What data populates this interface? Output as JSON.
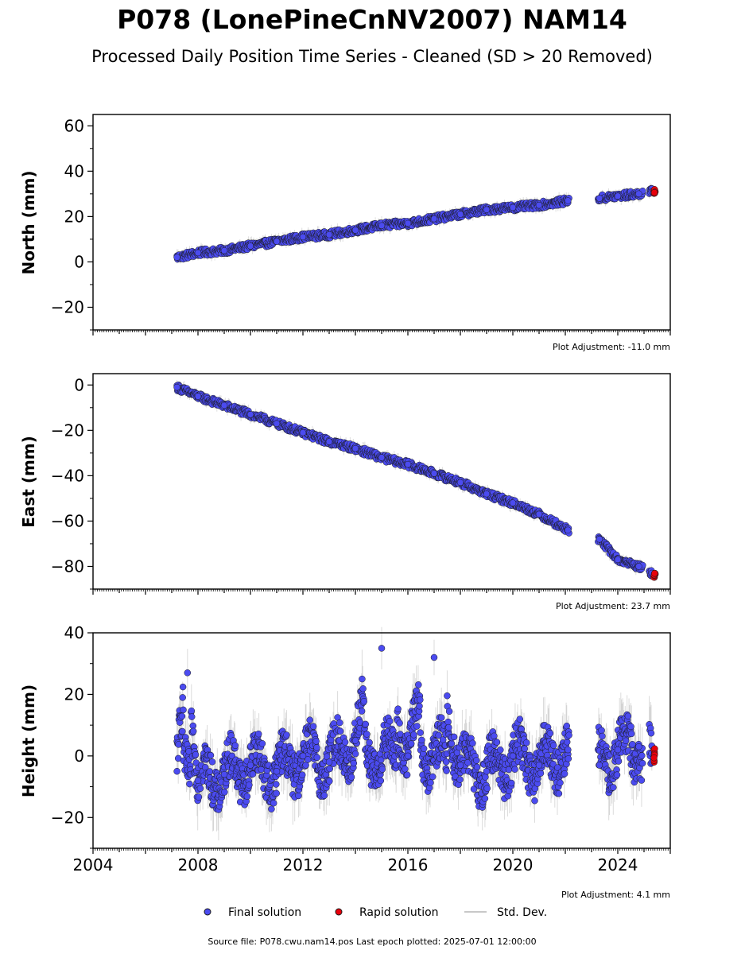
{
  "figure": {
    "title": "P078 (LonePineCnNV2007) NAM14",
    "subtitle": "Processed Daily Position Time Series - Cleaned (SD > 20 Removed)",
    "source_text": "Source file: P078.cwu.nam14.pos  Last epoch plotted: 2025-07-01 12:00:00",
    "legend": {
      "final": "Final solution",
      "rapid": "Rapid solution",
      "std": "Std. Dev."
    },
    "colors": {
      "final": "#4b4bf0",
      "rapid": "#e8000b",
      "std": "#c8c8c8",
      "marker_edge": "#1a1a1a"
    }
  },
  "chart_data": [
    {
      "type": "scatter",
      "panel": "north",
      "ylabel": "North (mm)",
      "ylim": [
        -30,
        65
      ],
      "yticks": [
        -20,
        0,
        20,
        40,
        60
      ],
      "xlim": [
        2004,
        2026
      ],
      "adjustment": "Plot Adjustment: -11.0 mm",
      "series": [
        {
          "name": "Final solution",
          "x": [
            2007.2,
            2008.0,
            2009.0,
            2010.0,
            2011.0,
            2012.0,
            2013.0,
            2014.0,
            2015.0,
            2016.0,
            2017.0,
            2018.0,
            2019.0,
            2020.0,
            2021.0,
            2022.1,
            2023.3,
            2024.0,
            2024.8,
            2025.3
          ],
          "y": [
            2,
            4,
            5,
            7,
            9,
            11,
            12,
            14,
            16,
            17,
            19,
            21,
            23,
            24,
            25,
            27,
            28,
            29,
            30,
            31
          ]
        },
        {
          "name": "Rapid solution",
          "x": [
            2025.4
          ],
          "y": [
            31
          ]
        }
      ]
    },
    {
      "type": "scatter",
      "panel": "east",
      "ylabel": "East (mm)",
      "ylim": [
        -90,
        5
      ],
      "yticks": [
        -80,
        -60,
        -40,
        -20,
        0
      ],
      "xlim": [
        2004,
        2026
      ],
      "adjustment": "Plot Adjustment: 23.7 mm",
      "series": [
        {
          "name": "Final solution",
          "x": [
            2007.2,
            2008.0,
            2009.0,
            2010.0,
            2011.0,
            2012.0,
            2013.0,
            2014.0,
            2015.0,
            2016.0,
            2017.0,
            2018.0,
            2019.0,
            2020.0,
            2021.0,
            2022.1,
            2023.3,
            2024.0,
            2024.8,
            2025.3
          ],
          "y": [
            -1,
            -5,
            -9,
            -13,
            -17,
            -21,
            -25,
            -28,
            -32,
            -35,
            -39,
            -43,
            -48,
            -52,
            -57,
            -64,
            -68,
            -77,
            -80,
            -83
          ]
        },
        {
          "name": "Rapid solution",
          "x": [
            2025.4
          ],
          "y": [
            -84
          ]
        }
      ]
    },
    {
      "type": "scatter",
      "panel": "height",
      "ylabel": "Height (mm)",
      "ylim": [
        -30,
        40
      ],
      "yticks": [
        -20,
        0,
        20,
        40
      ],
      "xlim": [
        2004,
        2026
      ],
      "xticks": [
        2004,
        2008,
        2012,
        2016,
        2020,
        2024
      ],
      "adjustment": "Plot Adjustment: 4.1 mm",
      "series": [
        {
          "name": "Final solution",
          "x": [
            2007.2,
            2007.6,
            2008.0,
            2009.0,
            2010.0,
            2011.0,
            2012.0,
            2013.0,
            2014.0,
            2015.0,
            2016.0,
            2017.0,
            2018.0,
            2019.0,
            2020.0,
            2021.0,
            2022.1,
            2023.3,
            2024.0,
            2024.8,
            2025.3
          ],
          "y": [
            -5,
            27,
            -8,
            -6,
            -3,
            -5,
            0,
            -2,
            5,
            35,
            0,
            32,
            -3,
            -5,
            0,
            -3,
            2,
            -3,
            2,
            3,
            -2
          ],
          "spread": 14
        },
        {
          "name": "Rapid solution",
          "x": [
            2025.4
          ],
          "y": [
            0
          ],
          "spread": 5
        }
      ]
    }
  ]
}
